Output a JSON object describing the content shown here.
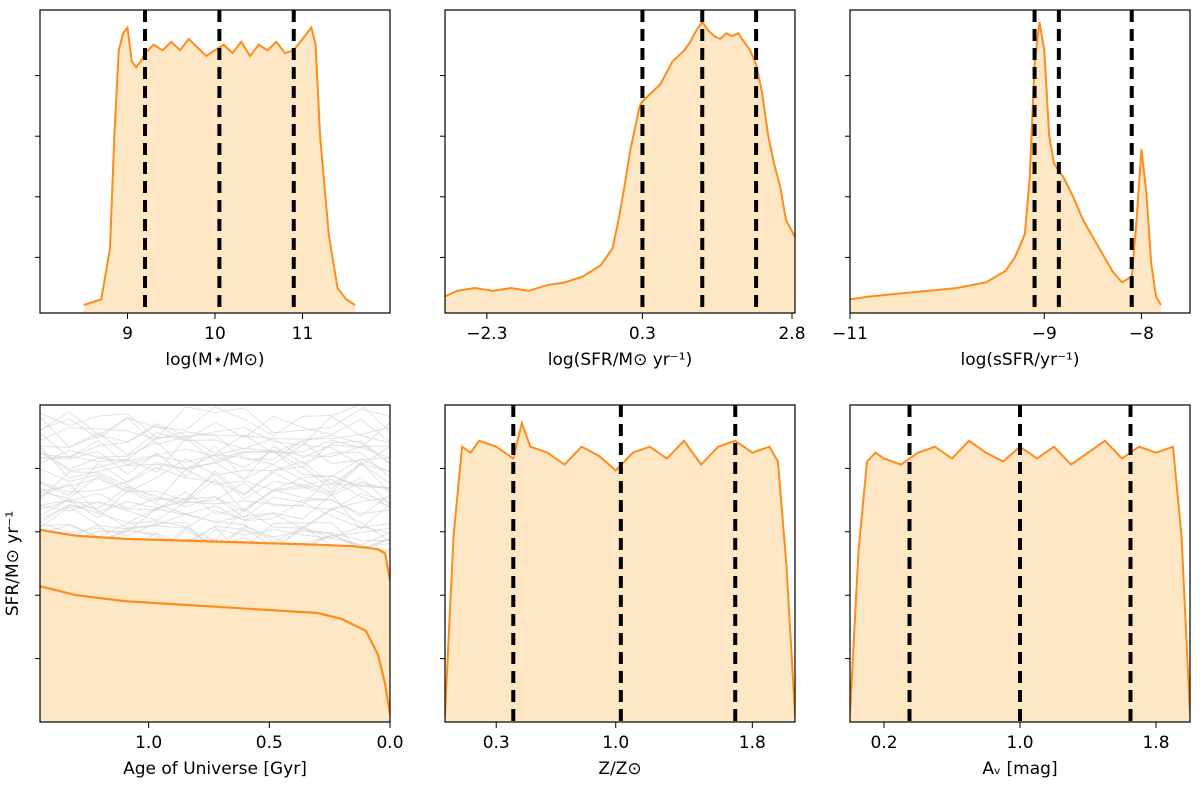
{
  "colors": {
    "accent": "#ff8c1a",
    "fill": "#fde7c4",
    "median_line": "#000000",
    "history_gray": "#d4d4d4"
  },
  "chart_data": [
    {
      "type": "area",
      "xlabel": "log(M⋆/M⊙)",
      "xticks": [
        9,
        10,
        11
      ],
      "xtick_labels": [
        "9",
        "10",
        "11"
      ],
      "xlim": [
        8.0,
        12.0
      ],
      "ylim": [
        0,
        1.0
      ],
      "grid": false,
      "vlines": [
        9.2,
        10.05,
        10.9
      ],
      "x": [
        8.5,
        8.7,
        8.8,
        8.85,
        8.9,
        8.95,
        9.0,
        9.05,
        9.1,
        9.15,
        9.2,
        9.3,
        9.4,
        9.5,
        9.6,
        9.7,
        9.8,
        9.9,
        10.0,
        10.1,
        10.2,
        10.3,
        10.4,
        10.5,
        10.6,
        10.7,
        10.8,
        10.9,
        11.0,
        11.1,
        11.15,
        11.2,
        11.3,
        11.4,
        11.5,
        11.6
      ],
      "y": [
        0.0,
        0.02,
        0.2,
        0.6,
        0.9,
        0.96,
        0.98,
        0.86,
        0.84,
        0.86,
        0.89,
        0.92,
        0.9,
        0.93,
        0.9,
        0.94,
        0.91,
        0.88,
        0.9,
        0.92,
        0.89,
        0.93,
        0.88,
        0.92,
        0.9,
        0.93,
        0.89,
        0.9,
        0.94,
        0.98,
        0.92,
        0.6,
        0.25,
        0.06,
        0.02,
        0.0
      ]
    },
    {
      "type": "area",
      "xlabel": "log(SFR/M⊙ yr⁻¹)",
      "xticks": [
        -2.3,
        0.3,
        2.8
      ],
      "xtick_labels": [
        "−2.3",
        "0.3",
        "2.8"
      ],
      "xlim": [
        -3.0,
        2.85
      ],
      "ylim": [
        0,
        1.0
      ],
      "grid": false,
      "vlines": [
        0.3,
        1.3,
        2.2
      ],
      "x": [
        -3.0,
        -2.8,
        -2.5,
        -2.2,
        -1.9,
        -1.6,
        -1.3,
        -1.0,
        -0.7,
        -0.4,
        -0.2,
        -0.1,
        0.0,
        0.1,
        0.2,
        0.25,
        0.3,
        0.4,
        0.5,
        0.6,
        0.7,
        0.8,
        0.9,
        1.0,
        1.1,
        1.2,
        1.3,
        1.4,
        1.5,
        1.6,
        1.7,
        1.8,
        1.9,
        2.0,
        2.1,
        2.2,
        2.3,
        2.4,
        2.5,
        2.6,
        2.7,
        2.85
      ],
      "y": [
        0.03,
        0.05,
        0.06,
        0.05,
        0.06,
        0.05,
        0.07,
        0.08,
        0.1,
        0.14,
        0.2,
        0.3,
        0.42,
        0.55,
        0.65,
        0.7,
        0.72,
        0.74,
        0.76,
        0.78,
        0.82,
        0.86,
        0.88,
        0.9,
        0.93,
        0.97,
        1.0,
        0.97,
        0.95,
        0.94,
        0.96,
        0.95,
        0.96,
        0.93,
        0.9,
        0.85,
        0.75,
        0.6,
        0.5,
        0.42,
        0.3,
        0.24
      ]
    },
    {
      "type": "area",
      "xlabel": "log(sSFR/yr⁻¹)",
      "xticks": [
        -11,
        -9,
        -8
      ],
      "xtick_labels": [
        "−11",
        "−9",
        "−8"
      ],
      "xlim": [
        -11.0,
        -7.5
      ],
      "ylim": [
        0,
        1.0
      ],
      "grid": false,
      "vlines": [
        -9.1,
        -8.85,
        -8.1
      ],
      "x": [
        -11.0,
        -10.8,
        -10.5,
        -10.2,
        -9.9,
        -9.6,
        -9.4,
        -9.3,
        -9.2,
        -9.15,
        -9.1,
        -9.05,
        -9.0,
        -8.95,
        -8.9,
        -8.8,
        -8.7,
        -8.6,
        -8.5,
        -8.4,
        -8.3,
        -8.2,
        -8.1,
        -8.05,
        -8.0,
        -7.95,
        -7.9,
        -7.85,
        -7.8
      ],
      "y": [
        0.02,
        0.03,
        0.04,
        0.05,
        0.06,
        0.08,
        0.12,
        0.17,
        0.25,
        0.45,
        0.85,
        1.0,
        0.9,
        0.6,
        0.5,
        0.45,
        0.38,
        0.3,
        0.24,
        0.18,
        0.12,
        0.08,
        0.1,
        0.3,
        0.55,
        0.4,
        0.15,
        0.03,
        0.0
      ]
    },
    {
      "type": "line",
      "xlabel": "Age of Universe [Gyr]",
      "ylabel": "SFR/M⊙ yr⁻¹",
      "xticks": [
        1.0,
        0.5,
        0.0
      ],
      "xtick_labels": [
        "1.0",
        "0.5",
        "0.0"
      ],
      "xlim": [
        1.45,
        0.0
      ],
      "ylim": [
        0,
        1.0
      ],
      "grid": false,
      "series": [
        {
          "values_x": [
            1.45,
            1.3,
            1.1,
            0.9,
            0.7,
            0.5,
            0.3,
            0.15,
            0.05,
            0.02,
            0.0
          ],
          "values": [
            0.62,
            0.6,
            0.59,
            0.585,
            0.58,
            0.575,
            0.57,
            0.565,
            0.555,
            0.54,
            0.45
          ]
        },
        {
          "values_x": [
            1.45,
            1.3,
            1.1,
            0.9,
            0.7,
            0.5,
            0.3,
            0.2,
            0.1,
            0.05,
            0.02,
            0.0
          ],
          "values": [
            0.43,
            0.4,
            0.38,
            0.37,
            0.36,
            0.35,
            0.34,
            0.32,
            0.28,
            0.2,
            0.1,
            0.0
          ]
        }
      ]
    },
    {
      "type": "area",
      "xlabel": "Z/Z⊙",
      "xticks": [
        0.3,
        1.0,
        1.8
      ],
      "xtick_labels": [
        "0.3",
        "1.0",
        "1.8"
      ],
      "xlim": [
        0.0,
        2.05
      ],
      "ylim": [
        0,
        1.0
      ],
      "grid": false,
      "vlines": [
        0.4,
        1.03,
        1.7
      ],
      "x": [
        0.0,
        0.05,
        0.1,
        0.15,
        0.2,
        0.3,
        0.4,
        0.45,
        0.5,
        0.6,
        0.7,
        0.8,
        0.9,
        1.0,
        1.1,
        1.2,
        1.3,
        1.4,
        1.5,
        1.6,
        1.7,
        1.8,
        1.9,
        1.95,
        2.0,
        2.05
      ],
      "y": [
        0.0,
        0.6,
        0.9,
        0.88,
        0.92,
        0.9,
        0.86,
        0.98,
        0.9,
        0.88,
        0.84,
        0.9,
        0.87,
        0.82,
        0.88,
        0.9,
        0.86,
        0.92,
        0.84,
        0.9,
        0.92,
        0.88,
        0.9,
        0.85,
        0.5,
        0.0
      ]
    },
    {
      "type": "area",
      "xlabel": "Aᵥ [mag]",
      "xticks": [
        0.2,
        1.0,
        1.8
      ],
      "xtick_labels": [
        "0.2",
        "1.0",
        "1.8"
      ],
      "xlim": [
        0.0,
        2.0
      ],
      "ylim": [
        0,
        1.0
      ],
      "grid": false,
      "vlines": [
        0.35,
        1.0,
        1.65
      ],
      "x": [
        0.0,
        0.05,
        0.1,
        0.15,
        0.2,
        0.3,
        0.4,
        0.5,
        0.6,
        0.7,
        0.8,
        0.9,
        1.0,
        1.1,
        1.2,
        1.3,
        1.4,
        1.5,
        1.6,
        1.7,
        1.8,
        1.9,
        1.95,
        2.0
      ],
      "y": [
        0.0,
        0.55,
        0.85,
        0.88,
        0.86,
        0.84,
        0.88,
        0.9,
        0.86,
        0.92,
        0.88,
        0.85,
        0.9,
        0.86,
        0.9,
        0.84,
        0.88,
        0.92,
        0.86,
        0.9,
        0.88,
        0.9,
        0.6,
        0.0
      ]
    }
  ]
}
